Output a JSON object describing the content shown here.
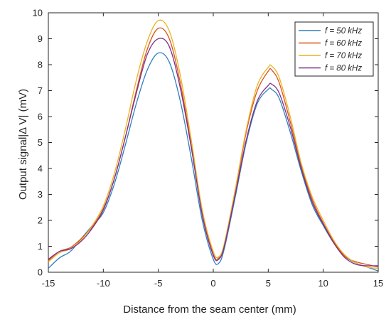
{
  "chart_data": {
    "type": "line",
    "xlabel": "Distance from the seam center (mm)",
    "ylabel": "Output signal|Δ V| (mV)",
    "xlim": [
      -15,
      15
    ],
    "ylim": [
      0,
      10
    ],
    "xticks": [
      -15,
      -10,
      -5,
      0,
      5,
      10,
      15
    ],
    "yticks": [
      0,
      1,
      2,
      3,
      4,
      5,
      6,
      7,
      8,
      9,
      10
    ],
    "grid": false,
    "legend_position": "top-right",
    "x": [
      -15,
      -14,
      -13,
      -12,
      -11,
      -10,
      -9,
      -8,
      -7,
      -6,
      -5,
      -4,
      -3,
      -2,
      -1,
      0,
      0.5,
      1,
      2,
      3,
      4,
      5,
      5.3,
      6,
      7,
      8,
      9,
      10,
      11,
      12,
      13,
      14,
      15
    ],
    "series": [
      {
        "name": "f = 50 kHz",
        "color": "#2f7fc0",
        "values": [
          0.15,
          0.55,
          0.8,
          1.3,
          1.8,
          2.3,
          3.4,
          4.9,
          6.5,
          7.8,
          8.45,
          8.1,
          6.6,
          4.4,
          2.0,
          0.5,
          0.35,
          0.9,
          2.9,
          5.0,
          6.5,
          7.05,
          7.05,
          6.7,
          5.4,
          3.9,
          2.6,
          1.8,
          1.1,
          0.6,
          0.35,
          0.2,
          0.05
        ]
      },
      {
        "name": "f = 60 kHz",
        "color": "#d95319",
        "values": [
          0.45,
          0.8,
          0.95,
          1.3,
          1.75,
          2.45,
          3.6,
          5.2,
          7.0,
          8.6,
          9.4,
          9.0,
          7.3,
          4.9,
          2.3,
          0.7,
          0.55,
          1.0,
          3.1,
          5.4,
          7.0,
          7.75,
          7.8,
          7.3,
          5.8,
          4.1,
          2.8,
          1.9,
          1.15,
          0.6,
          0.4,
          0.3,
          0.2
        ]
      },
      {
        "name": "f = 70 kHz",
        "color": "#edb120",
        "values": [
          0.4,
          0.75,
          0.9,
          1.25,
          1.8,
          2.55,
          3.8,
          5.5,
          7.4,
          8.9,
          9.7,
          9.3,
          7.6,
          5.1,
          2.4,
          0.8,
          0.6,
          1.1,
          3.2,
          5.5,
          7.2,
          7.9,
          7.95,
          7.5,
          6.0,
          4.2,
          2.9,
          2.0,
          1.2,
          0.65,
          0.35,
          0.2,
          0.15
        ]
      },
      {
        "name": "f = 80 kHz",
        "color": "#7e2f8e",
        "values": [
          0.5,
          0.8,
          0.9,
          1.2,
          1.7,
          2.4,
          3.6,
          5.2,
          6.9,
          8.4,
          9.0,
          8.7,
          7.1,
          4.8,
          2.2,
          0.65,
          0.5,
          1.0,
          3.0,
          5.1,
          6.6,
          7.2,
          7.25,
          6.9,
          5.6,
          4.0,
          2.7,
          1.85,
          1.1,
          0.55,
          0.3,
          0.25,
          0.25
        ]
      }
    ]
  }
}
